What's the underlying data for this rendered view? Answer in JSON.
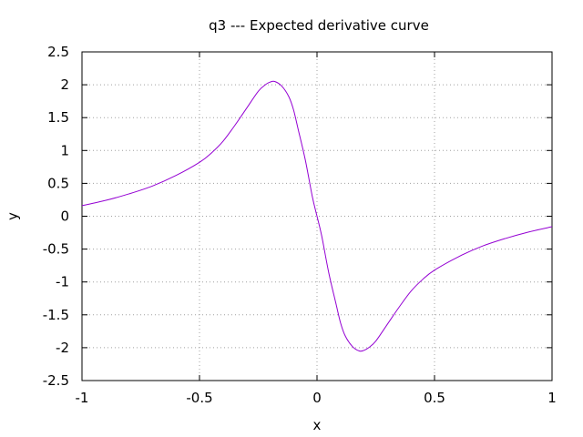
{
  "chart_data": {
    "type": "line",
    "title": "q3 --- Expected derivative curve",
    "xlabel": "x",
    "ylabel": "y",
    "xlim": [
      -1,
      1
    ],
    "ylim": [
      -2.5,
      2.5
    ],
    "grid": true,
    "xticks": [
      -1,
      -0.5,
      0,
      0.5,
      1
    ],
    "xtick_labels": [
      "-1",
      "-0.5",
      "0",
      "0.5",
      "1"
    ],
    "yticks": [
      -2.5,
      -2,
      -1.5,
      -1,
      -0.5,
      0,
      0.5,
      1,
      1.5,
      2,
      2.5
    ],
    "ytick_labels": [
      "-2.5",
      "-2",
      "-1.5",
      "-1",
      "-0.5",
      "0",
      "0.5",
      "1",
      "1.5",
      "2",
      "2.5"
    ],
    "series": [
      {
        "color": "#9400d3",
        "x": [
          -1.0,
          -0.9,
          -0.8,
          -0.7,
          -0.6,
          -0.5,
          -0.45,
          -0.4,
          -0.35,
          -0.3,
          -0.25,
          -0.22,
          -0.2,
          -0.18,
          -0.15,
          -0.12,
          -0.1,
          -0.08,
          -0.05,
          -0.02,
          0.0,
          0.02,
          0.05,
          0.08,
          0.1,
          0.12,
          0.15,
          0.18,
          0.2,
          0.22,
          0.25,
          0.3,
          0.35,
          0.4,
          0.45,
          0.5,
          0.6,
          0.7,
          0.8,
          0.9,
          1.0
        ],
        "y": [
          0.16,
          0.24,
          0.34,
          0.46,
          0.62,
          0.82,
          0.96,
          1.14,
          1.38,
          1.64,
          1.9,
          2.0,
          2.04,
          2.05,
          1.98,
          1.82,
          1.62,
          1.32,
          0.86,
          0.3,
          0.0,
          -0.3,
          -0.86,
          -1.32,
          -1.62,
          -1.82,
          -1.98,
          -2.05,
          -2.04,
          -2.0,
          -1.9,
          -1.64,
          -1.38,
          -1.14,
          -0.96,
          -0.82,
          -0.62,
          -0.46,
          -0.34,
          -0.24,
          -0.16
        ]
      }
    ]
  }
}
